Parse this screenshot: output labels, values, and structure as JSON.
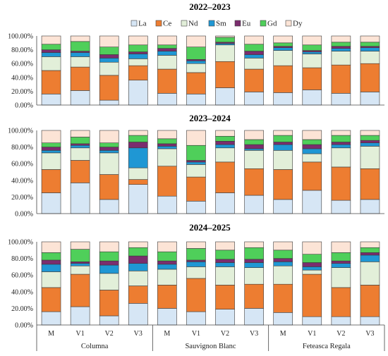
{
  "chart_data": {
    "type": "bar",
    "stacked": true,
    "legend_placement": "top-center",
    "colors": {
      "La": "#d6e6f5",
      "Ce": "#ed7d31",
      "Nd": "#e2efd9",
      "Sm": "#1f97d4",
      "Eu": "#7b2d6e",
      "Gd": "#4fcf5a",
      "Dy": "#fce4d6"
    },
    "series_names": [
      "La",
      "Ce",
      "Nd",
      "Sm",
      "Eu",
      "Gd",
      "Dy"
    ],
    "yticks": [
      "0.00%",
      "20.00%",
      "40.00%",
      "60.00%",
      "80.00%",
      "100.00%"
    ],
    "ylim": [
      0,
      100
    ],
    "categories": [
      "M",
      "V1",
      "V2",
      "V3",
      "M",
      "V1",
      "V2",
      "V3",
      "M",
      "V1",
      "V2",
      "V3"
    ],
    "groups": [
      "Columna",
      "Sauvignon Blanc",
      "Feteasca Regala"
    ],
    "panels": [
      {
        "title": "2022–2023",
        "bars": [
          [
            16,
            34,
            20,
            6,
            4,
            8,
            12
          ],
          [
            21,
            34,
            15,
            6,
            2,
            14,
            8
          ],
          [
            7,
            36,
            19,
            6,
            5,
            11,
            16
          ],
          [
            36,
            21,
            10,
            7,
            3,
            10,
            13
          ],
          [
            17,
            35,
            20,
            6,
            4,
            5,
            13
          ],
          [
            16,
            31,
            13,
            4,
            2,
            18,
            16
          ],
          [
            25,
            38,
            24,
            2,
            2,
            7,
            2
          ],
          [
            19,
            33,
            16,
            5,
            5,
            10,
            12
          ],
          [
            18,
            39,
            22,
            4,
            2,
            5,
            10
          ],
          [
            22,
            32,
            20,
            3,
            2,
            8,
            13
          ],
          [
            17,
            41,
            20,
            4,
            3,
            6,
            9
          ],
          [
            19,
            41,
            18,
            5,
            2,
            6,
            9
          ]
        ]
      },
      {
        "title": "2023–2024",
        "bars": [
          [
            25,
            28,
            20,
            3,
            4,
            5,
            15
          ],
          [
            37,
            27,
            15,
            3,
            2,
            8,
            8
          ],
          [
            17,
            30,
            26,
            3,
            4,
            5,
            15
          ],
          [
            35,
            6,
            14,
            24,
            7,
            8,
            6
          ],
          [
            21,
            36,
            21,
            3,
            3,
            6,
            10
          ],
          [
            15,
            29,
            15,
            3,
            2,
            18,
            18
          ],
          [
            25,
            37,
            17,
            4,
            4,
            6,
            7
          ],
          [
            22,
            32,
            22,
            2,
            5,
            6,
            11
          ],
          [
            17,
            36,
            23,
            7,
            3,
            8,
            6
          ],
          [
            28,
            34,
            10,
            6,
            5,
            6,
            11
          ],
          [
            16,
            40,
            23,
            4,
            3,
            8,
            6
          ],
          [
            17,
            37,
            27,
            4,
            3,
            6,
            6
          ]
        ]
      },
      {
        "title": "2024–2025",
        "bars": [
          [
            16,
            29,
            19,
            9,
            5,
            9,
            13
          ],
          [
            22,
            39,
            10,
            3,
            2,
            15,
            9
          ],
          [
            11,
            31,
            20,
            10,
            5,
            11,
            12
          ],
          [
            26,
            21,
            18,
            9,
            9,
            10,
            7
          ],
          [
            20,
            28,
            19,
            6,
            4,
            11,
            12
          ],
          [
            16,
            40,
            14,
            6,
            2,
            14,
            8
          ],
          [
            19,
            29,
            22,
            5,
            4,
            11,
            10
          ],
          [
            20,
            29,
            20,
            6,
            4,
            14,
            7
          ],
          [
            15,
            34,
            22,
            5,
            4,
            10,
            10
          ],
          [
            10,
            51,
            5,
            4,
            5,
            10,
            15
          ],
          [
            10,
            35,
            24,
            5,
            3,
            10,
            13
          ],
          [
            10,
            38,
            28,
            8,
            3,
            6,
            7
          ]
        ]
      }
    ]
  }
}
